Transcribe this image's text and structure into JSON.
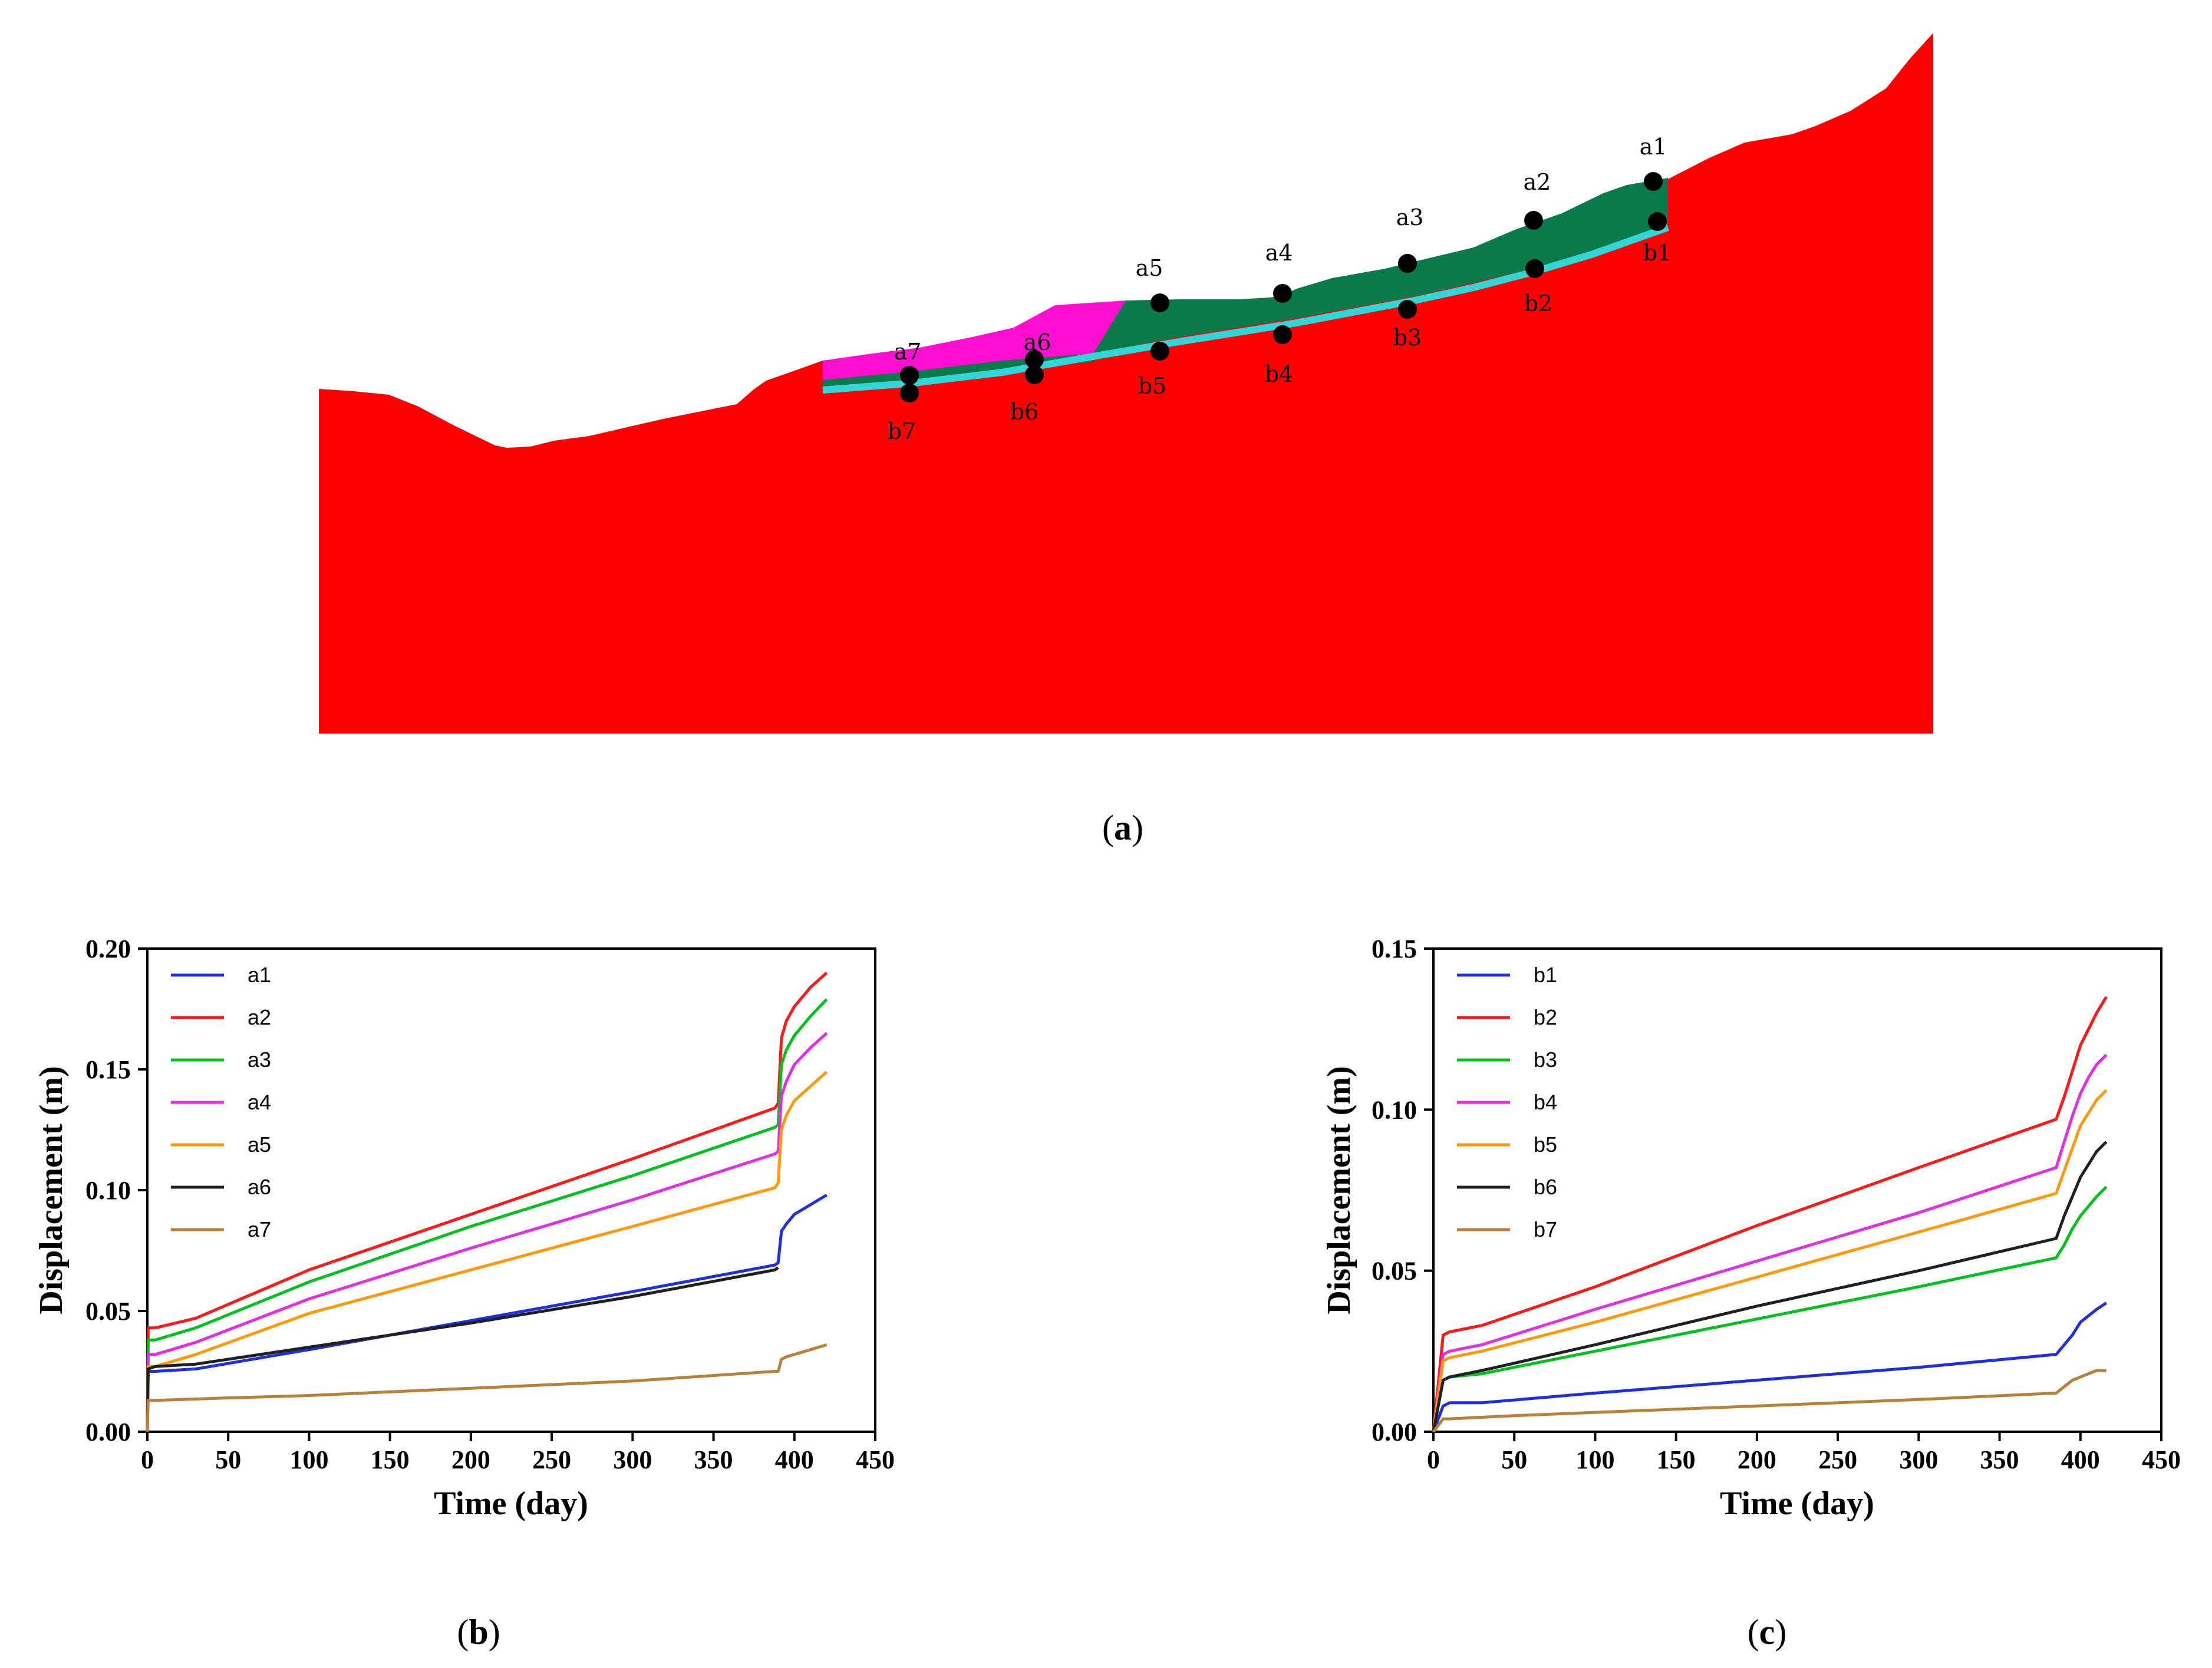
{
  "panel_labels": {
    "a": "a",
    "b": "b",
    "c": "c"
  },
  "slope_model": {
    "colors": {
      "bedrock": "#ff0000",
      "landslide_body": "#0b7a4a",
      "front_zone": "#ff10d0",
      "slip_zone": "#33d6d6",
      "monitoring_point": "#000000"
    },
    "surface_points": [
      "a1",
      "a2",
      "a3",
      "a4",
      "a5",
      "a6",
      "a7"
    ],
    "slip_points": [
      "b1",
      "b2",
      "b3",
      "b4",
      "b5",
      "b6",
      "b7"
    ]
  },
  "chart_data": [
    {
      "type": "line",
      "xlabel": "Time (day)",
      "ylabel": "Displacement (m)",
      "xlim": [
        0,
        450
      ],
      "ylim": [
        0,
        0.2
      ],
      "xticks": [
        "0",
        "50",
        "100",
        "150",
        "200",
        "250",
        "300",
        "350",
        "400",
        "450"
      ],
      "yticks": [
        "0.00",
        "0.05",
        "0.10",
        "0.15",
        "0.20"
      ],
      "series": [
        {
          "name": "a1",
          "color": "#1f2fe0",
          "x": [
            0,
            0.5,
            5,
            30,
            100,
            200,
            300,
            388,
            390,
            392,
            395,
            400,
            410,
            420
          ],
          "y": [
            0,
            0.025,
            0.025,
            0.026,
            0.034,
            0.046,
            0.058,
            0.069,
            0.07,
            0.083,
            0.086,
            0.09,
            0.094,
            0.098
          ]
        },
        {
          "name": "a2",
          "color": "#ff1a1a",
          "x": [
            0,
            0.5,
            5,
            30,
            100,
            200,
            300,
            388,
            390,
            392,
            395,
            400,
            410,
            420
          ],
          "y": [
            0,
            0.043,
            0.043,
            0.047,
            0.067,
            0.09,
            0.113,
            0.134,
            0.136,
            0.163,
            0.17,
            0.176,
            0.184,
            0.19
          ]
        },
        {
          "name": "a3",
          "color": "#00c020",
          "x": [
            0,
            0.5,
            5,
            30,
            100,
            200,
            300,
            388,
            390,
            392,
            395,
            400,
            410,
            420
          ],
          "y": [
            0,
            0.038,
            0.038,
            0.043,
            0.062,
            0.085,
            0.106,
            0.126,
            0.127,
            0.152,
            0.158,
            0.164,
            0.172,
            0.179
          ]
        },
        {
          "name": "a4",
          "color": "#e030e0",
          "x": [
            0,
            0.5,
            5,
            30,
            100,
            200,
            300,
            388,
            390,
            392,
            395,
            400,
            410,
            420
          ],
          "y": [
            0,
            0.032,
            0.032,
            0.037,
            0.055,
            0.076,
            0.096,
            0.115,
            0.116,
            0.139,
            0.145,
            0.152,
            0.159,
            0.165
          ]
        },
        {
          "name": "a5",
          "color": "#ff9a10",
          "x": [
            0,
            0.5,
            5,
            30,
            100,
            200,
            300,
            388,
            390,
            392,
            395,
            400,
            410,
            420
          ],
          "y": [
            0,
            0.027,
            0.027,
            0.032,
            0.049,
            0.067,
            0.085,
            0.101,
            0.103,
            0.125,
            0.131,
            0.137,
            0.143,
            0.149
          ]
        },
        {
          "name": "a6",
          "color": "#202020",
          "x": [
            0,
            0.5,
            5,
            30,
            100,
            200,
            300,
            388,
            390
          ],
          "y": [
            0,
            0.026,
            0.027,
            0.028,
            0.035,
            0.045,
            0.056,
            0.067,
            0.068
          ]
        },
        {
          "name": "a7",
          "color": "#b8803a",
          "x": [
            0,
            0.5,
            5,
            50,
            100,
            200,
            300,
            388,
            390,
            392,
            395,
            400,
            410,
            420
          ],
          "y": [
            0,
            0.013,
            0.013,
            0.014,
            0.015,
            0.018,
            0.021,
            0.025,
            0.025,
            0.03,
            0.031,
            0.032,
            0.034,
            0.036
          ]
        }
      ]
    },
    {
      "type": "line",
      "xlabel": "Time (day)",
      "ylabel": "Displacement (m)",
      "xlim": [
        0,
        450
      ],
      "ylim": [
        0,
        0.15
      ],
      "xticks": [
        "0",
        "50",
        "100",
        "150",
        "200",
        "250",
        "300",
        "350",
        "400",
        "450"
      ],
      "yticks": [
        "0.00",
        "0.05",
        "0.10",
        "0.15"
      ],
      "series": [
        {
          "name": "b1",
          "color": "#1f2fe0",
          "x": [
            0,
            6,
            10,
            30,
            100,
            200,
            300,
            385,
            390,
            395,
            400,
            405,
            410,
            416
          ],
          "y": [
            0,
            0.008,
            0.009,
            0.009,
            0.012,
            0.016,
            0.02,
            0.024,
            0.027,
            0.03,
            0.034,
            0.036,
            0.038,
            0.04
          ]
        },
        {
          "name": "b2",
          "color": "#ff1a1a",
          "x": [
            0,
            6,
            10,
            30,
            100,
            200,
            300,
            385,
            390,
            395,
            400,
            405,
            410,
            416
          ],
          "y": [
            0,
            0.03,
            0.031,
            0.033,
            0.045,
            0.064,
            0.082,
            0.097,
            0.104,
            0.112,
            0.12,
            0.125,
            0.13,
            0.135
          ]
        },
        {
          "name": "b3",
          "color": "#00c020",
          "x": [
            0,
            6,
            10,
            30,
            100,
            200,
            300,
            385,
            390,
            395,
            400,
            405,
            410,
            416
          ],
          "y": [
            0,
            0.016,
            0.017,
            0.018,
            0.025,
            0.035,
            0.045,
            0.054,
            0.058,
            0.063,
            0.067,
            0.07,
            0.073,
            0.076
          ]
        },
        {
          "name": "b4",
          "color": "#e030e0",
          "x": [
            0,
            6,
            10,
            30,
            100,
            200,
            300,
            385,
            390,
            395,
            400,
            405,
            410,
            416
          ],
          "y": [
            0,
            0.024,
            0.025,
            0.027,
            0.038,
            0.053,
            0.068,
            0.082,
            0.09,
            0.098,
            0.105,
            0.11,
            0.114,
            0.117
          ]
        },
        {
          "name": "b5",
          "color": "#ff9a10",
          "x": [
            0,
            6,
            10,
            30,
            100,
            200,
            300,
            385,
            390,
            395,
            400,
            405,
            410,
            416
          ],
          "y": [
            0,
            0.022,
            0.023,
            0.025,
            0.034,
            0.048,
            0.062,
            0.074,
            0.081,
            0.088,
            0.095,
            0.099,
            0.103,
            0.106
          ]
        },
        {
          "name": "b6",
          "color": "#202020",
          "x": [
            0,
            6,
            10,
            30,
            100,
            200,
            300,
            385,
            390,
            395,
            400,
            405,
            410,
            416
          ],
          "y": [
            0,
            0.016,
            0.017,
            0.019,
            0.027,
            0.039,
            0.05,
            0.06,
            0.067,
            0.073,
            0.079,
            0.083,
            0.087,
            0.09
          ]
        },
        {
          "name": "b7",
          "color": "#b8803a",
          "x": [
            0,
            6,
            10,
            50,
            100,
            200,
            300,
            385,
            390,
            395,
            400,
            405,
            410,
            416
          ],
          "y": [
            0,
            0.004,
            0.004,
            0.005,
            0.006,
            0.008,
            0.01,
            0.012,
            0.014,
            0.016,
            0.017,
            0.018,
            0.019,
            0.019
          ]
        }
      ]
    }
  ]
}
